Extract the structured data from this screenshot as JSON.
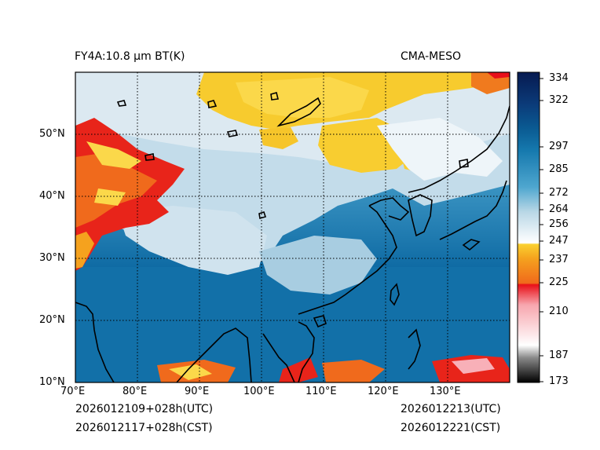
{
  "title_left": "FY4A:10.8 µm BT(K)",
  "title_right": "CMA-MESO",
  "footer": {
    "init_utc": "2026012109+028h(UTC)",
    "init_cst": "2026012117+028h(CST)",
    "valid_utc": "2026012213(UTC)",
    "valid_cst": "2026012221(CST)"
  },
  "map": {
    "lon_range": [
      70,
      140
    ],
    "lat_range": [
      10,
      60
    ],
    "lon_ticks": [
      "70°E",
      "80°E",
      "90°E",
      "100°E",
      "110°E",
      "120°E",
      "130°E"
    ],
    "lat_ticks": [
      "10°N",
      "20°N",
      "30°N",
      "40°N",
      "50°N"
    ]
  },
  "colorbar": {
    "min": 173,
    "max": 340,
    "ticks": [
      "334",
      "322",
      "297",
      "285",
      "272",
      "264",
      "256",
      "247",
      "237",
      "225",
      "210",
      "187",
      "173"
    ],
    "colors": {
      "cold_black": "#000000",
      "gray": "#9a9a9a",
      "pink": "#f5a0a8",
      "red": "#e8101a",
      "orange": "#f07a1e",
      "yellow": "#f8cc2a",
      "white": "#ffffff",
      "light_blue": "#b8d6e6",
      "mid_blue": "#2a8cbc",
      "deep_blue": "#0a5a92",
      "navy": "#061a50"
    }
  }
}
